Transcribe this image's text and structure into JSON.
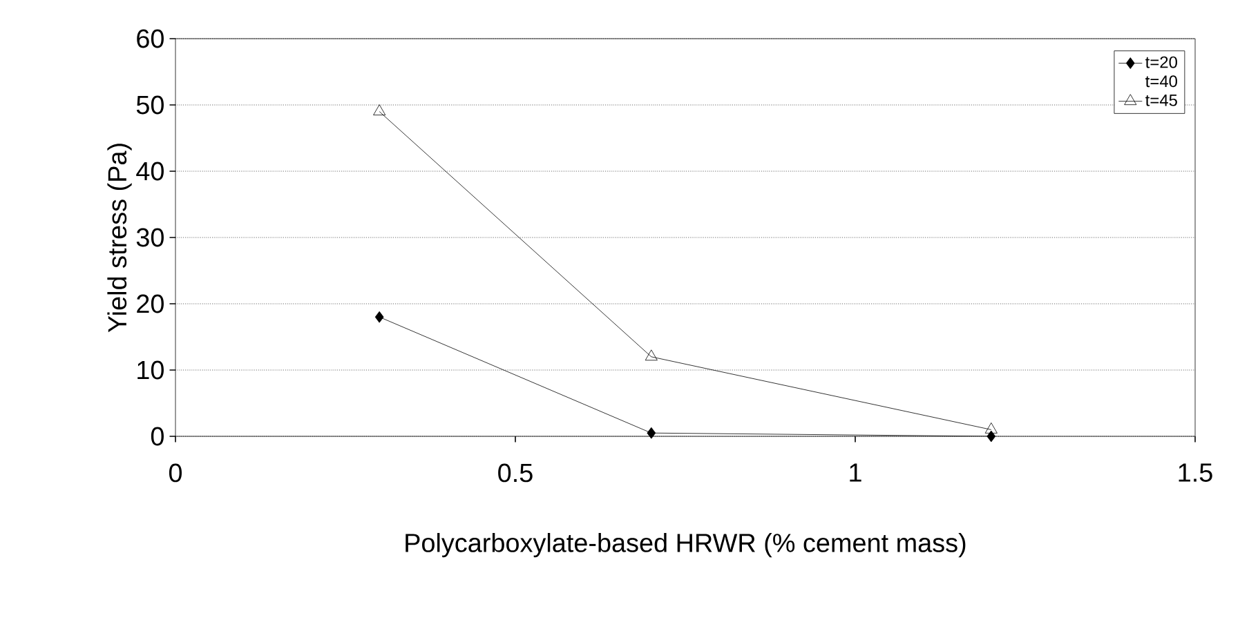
{
  "chart_data": {
    "type": "line",
    "xlabel": "Polycarboxylate-based HRWR  (% cement mass)",
    "ylabel": "Yield stress (Pa)",
    "x": [
      0.3,
      0.7,
      1.2
    ],
    "series": [
      {
        "name": "t=20",
        "color": "#000000",
        "marker": "diamond",
        "values": [
          18,
          0.5,
          0
        ]
      },
      {
        "name": "t=40",
        "values": [
          null,
          null,
          null
        ]
      },
      {
        "name": "t=45",
        "color": "#000000",
        "marker": "triangle",
        "values": [
          49,
          12,
          1
        ]
      }
    ],
    "xlim": [
      0,
      1.5
    ],
    "xticks": [
      0,
      0.5,
      1,
      1.5
    ],
    "ylim": [
      0,
      60
    ],
    "yticks": [
      0,
      10,
      20,
      30,
      40,
      50,
      60
    ],
    "grid": "y",
    "legend": "top right"
  }
}
